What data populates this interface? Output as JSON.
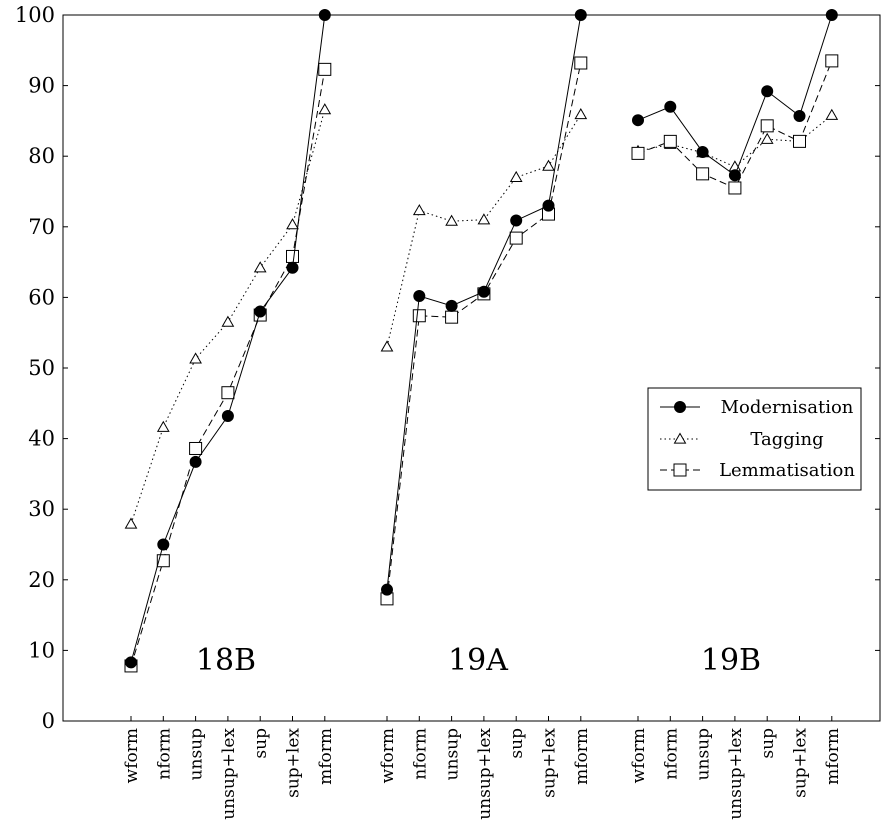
{
  "chart_data": {
    "type": "line",
    "ylim": [
      0,
      100
    ],
    "y_ticks": [
      0,
      10,
      20,
      30,
      40,
      50,
      60,
      70,
      80,
      90,
      100
    ],
    "grid": false,
    "legend_position": "right",
    "categories": [
      "wform",
      "nform",
      "unsup",
      "unsup+lex",
      "sup",
      "sup+lex",
      "mform"
    ],
    "groups": [
      {
        "label": "18B",
        "series": [
          {
            "name": "Modernisation",
            "values": [
              8.3,
              25.0,
              36.7,
              43.2,
              58.0,
              64.2,
              100.0
            ]
          },
          {
            "name": "Tagging",
            "values": [
              27.9,
              41.6,
              51.3,
              56.5,
              64.2,
              70.3,
              86.6
            ]
          },
          {
            "name": "Lemmatisation",
            "values": [
              7.8,
              22.7,
              38.6,
              46.5,
              57.5,
              65.8,
              92.3
            ]
          }
        ]
      },
      {
        "label": "19A",
        "series": [
          {
            "name": "Modernisation",
            "values": [
              18.6,
              60.2,
              58.8,
              60.8,
              70.9,
              73.0,
              100.0
            ]
          },
          {
            "name": "Tagging",
            "values": [
              53.0,
              72.3,
              70.8,
              71.0,
              77.0,
              78.6,
              85.9
            ]
          },
          {
            "name": "Lemmatisation",
            "values": [
              17.3,
              57.4,
              57.2,
              60.5,
              68.4,
              71.8,
              93.2
            ]
          }
        ]
      },
      {
        "label": "19B",
        "series": [
          {
            "name": "Modernisation",
            "values": [
              85.1,
              87.0,
              80.6,
              77.3,
              89.2,
              85.7,
              100.0
            ]
          },
          {
            "name": "Tagging",
            "values": [
              80.7,
              81.7,
              80.5,
              78.5,
              82.4,
              82.1,
              85.8
            ]
          },
          {
            "name": "Lemmatisation",
            "values": [
              80.4,
              82.1,
              77.5,
              75.5,
              84.3,
              82.1,
              93.5
            ]
          }
        ]
      }
    ]
  }
}
